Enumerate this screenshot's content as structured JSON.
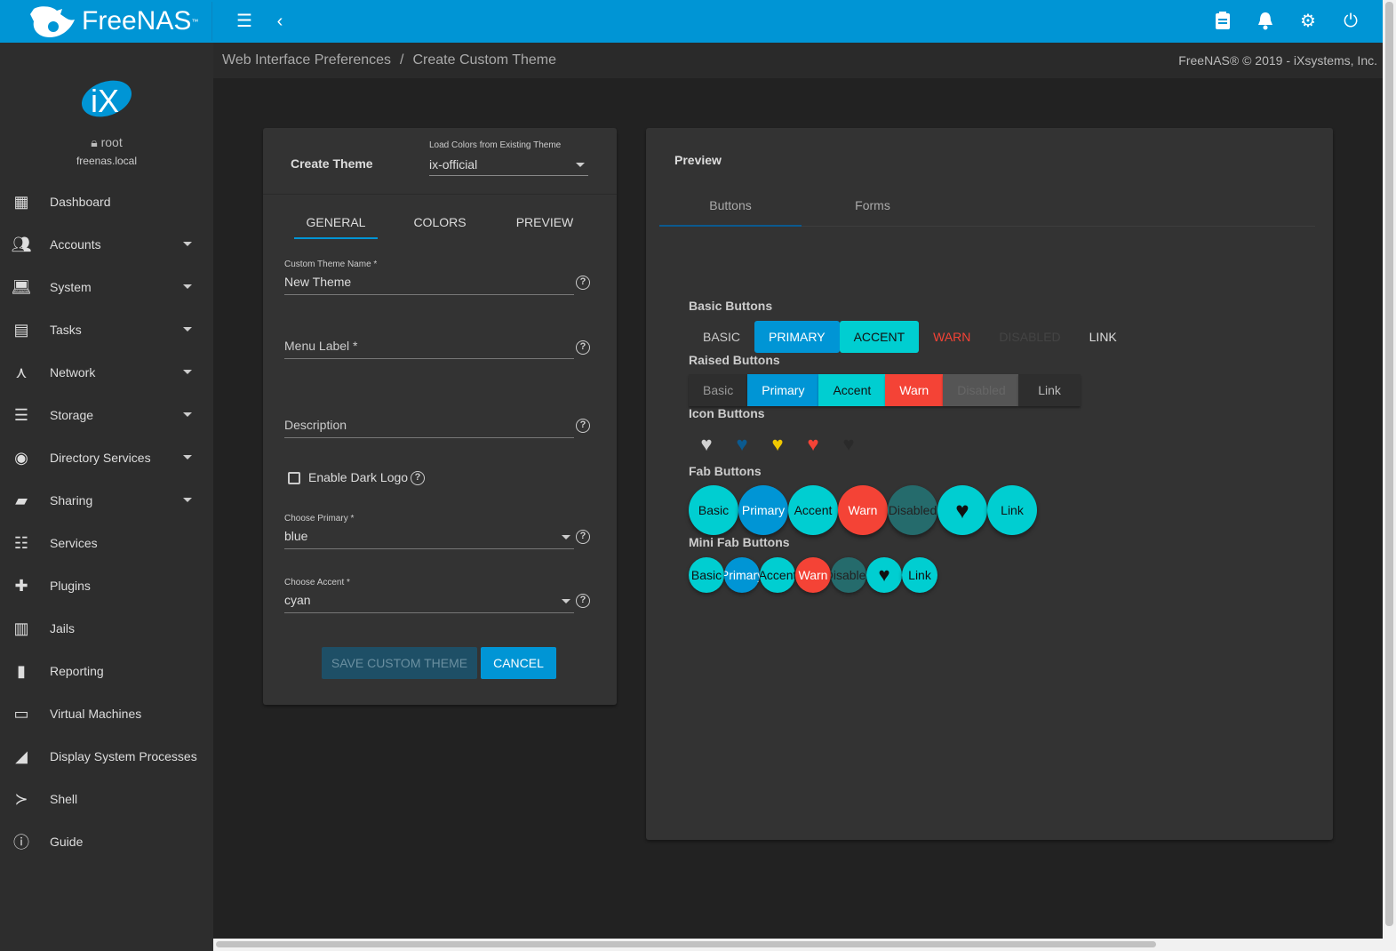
{
  "app": {
    "brand": "FreeNAS",
    "brand_mark": "™"
  },
  "topbar": {
    "icons": [
      "menu-icon",
      "back-icon",
      "clipboard-icon",
      "bell-icon",
      "gear-icon",
      "power-icon"
    ]
  },
  "user": {
    "name": "root",
    "host": "freenas.local"
  },
  "sidebar": {
    "items": [
      {
        "label": "Dashboard",
        "icon": "dashboard-icon",
        "expand": false
      },
      {
        "label": "Accounts",
        "icon": "people-icon",
        "expand": true
      },
      {
        "label": "System",
        "icon": "laptop-icon",
        "expand": true
      },
      {
        "label": "Tasks",
        "icon": "calendar-icon",
        "expand": true
      },
      {
        "label": "Network",
        "icon": "network-icon",
        "expand": true
      },
      {
        "label": "Storage",
        "icon": "storage-icon",
        "expand": true
      },
      {
        "label": "Directory Services",
        "icon": "directory-icon",
        "expand": true
      },
      {
        "label": "Sharing",
        "icon": "folder-shared-icon",
        "expand": true
      },
      {
        "label": "Services",
        "icon": "tune-icon",
        "expand": false
      },
      {
        "label": "Plugins",
        "icon": "puzzle-icon",
        "expand": false
      },
      {
        "label": "Jails",
        "icon": "jail-icon",
        "expand": false
      },
      {
        "label": "Reporting",
        "icon": "chart-icon",
        "expand": false
      },
      {
        "label": "Virtual Machines",
        "icon": "computer-icon",
        "expand": false
      },
      {
        "label": "Display System Processes",
        "icon": "processes-icon",
        "expand": false
      },
      {
        "label": "Shell",
        "icon": "terminal-icon",
        "expand": false
      },
      {
        "label": "Guide",
        "icon": "info-icon",
        "expand": false
      }
    ]
  },
  "breadcrumb": {
    "parent": "Web Interface Preferences",
    "separator": "/",
    "current": "Create Custom Theme",
    "copyright": "FreeNAS® © 2019 - iXsystems, Inc."
  },
  "form": {
    "title": "Create Theme",
    "load_label": "Load Colors from Existing Theme",
    "load_value": "ix-official",
    "tabs": [
      "GENERAL",
      "COLORS",
      "PREVIEW"
    ],
    "name_label": "Custom Theme Name *",
    "name_value": "New Theme",
    "menu_label": "Menu Label *",
    "description_label": "Description",
    "dark_logo_label": "Enable Dark Logo",
    "primary_label": "Choose Primary *",
    "primary_value": "blue",
    "accent_label": "Choose Accent *",
    "accent_value": "cyan",
    "save_label": "SAVE CUSTOM THEME",
    "cancel_label": "CANCEL"
  },
  "preview": {
    "title": "Preview",
    "tabs": [
      "Buttons",
      "Forms"
    ],
    "basic_title": "Basic Buttons",
    "basic": [
      "BASIC",
      "PRIMARY",
      "ACCENT",
      "WARN",
      "DISABLED",
      "LINK"
    ],
    "raised_title": "Raised Buttons",
    "raised": [
      "Basic",
      "Primary",
      "Accent",
      "Warn",
      "Disabled",
      "Link"
    ],
    "icon_title": "Icon Buttons",
    "fab_title": "Fab Buttons",
    "fab": [
      "Basic",
      "Primary",
      "Accent",
      "Warn",
      "Disabled",
      "Link"
    ],
    "minifab_title": "Mini Fab Buttons",
    "minifab": [
      "Basic",
      "Primary",
      "Accent",
      "Warn",
      "Disabled",
      "Link"
    ]
  },
  "colors": {
    "primary": "#0095d5",
    "accent": "#00ced1",
    "warn": "#f44336",
    "topbar": "#0095d5",
    "heart_colors": [
      "#d0d0d0",
      "#0b5a8f",
      "#f0c800",
      "#f44336",
      "#2a2a2a"
    ]
  }
}
